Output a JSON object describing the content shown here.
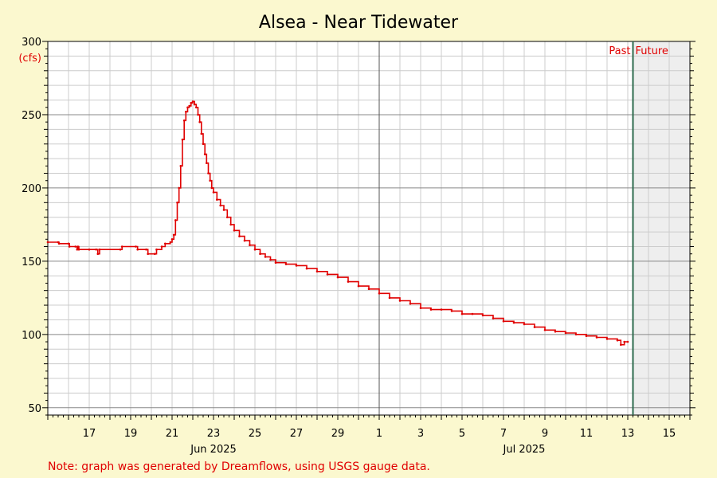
{
  "chart_data": {
    "type": "line",
    "title": "Alsea - Near Tidewater",
    "unit_label": "(cfs)",
    "xlabel": "",
    "ylabel": "",
    "x_range": [
      "2025-06-15",
      "2025-07-16"
    ],
    "ylim": [
      45,
      300
    ],
    "y_ticks": [
      50,
      100,
      150,
      200,
      250,
      300
    ],
    "x_ticks": [
      {
        "date": "2025-06-17",
        "label": "17"
      },
      {
        "date": "2025-06-19",
        "label": "19"
      },
      {
        "date": "2025-06-21",
        "label": "21"
      },
      {
        "date": "2025-06-23",
        "label": "23"
      },
      {
        "date": "2025-06-25",
        "label": "25"
      },
      {
        "date": "2025-06-27",
        "label": "27"
      },
      {
        "date": "2025-06-29",
        "label": "29"
      },
      {
        "date": "2025-07-01",
        "label": "1"
      },
      {
        "date": "2025-07-03",
        "label": "3"
      },
      {
        "date": "2025-07-05",
        "label": "5"
      },
      {
        "date": "2025-07-07",
        "label": "7"
      },
      {
        "date": "2025-07-09",
        "label": "9"
      },
      {
        "date": "2025-07-11",
        "label": "11"
      },
      {
        "date": "2025-07-13",
        "label": "13"
      },
      {
        "date": "2025-07-15",
        "label": "15"
      }
    ],
    "month_labels": [
      {
        "date": "2025-06-23",
        "label": "Jun 2025"
      },
      {
        "date": "2025-07-08",
        "label": "Jul 2025"
      }
    ],
    "month_divider": "2025-07-01",
    "now": "2025-07-13 06:00",
    "past_label": "Past",
    "future_label": "Future",
    "grid": true,
    "series": [
      {
        "color": "#e00000",
        "points": [
          [
            "2025-06-15 00:00",
            163
          ],
          [
            "2025-06-15 12:00",
            163
          ],
          [
            "2025-06-15 13:00",
            162
          ],
          [
            "2025-06-16 00:00",
            162
          ],
          [
            "2025-06-16 01:00",
            160
          ],
          [
            "2025-06-16 08:00",
            160
          ],
          [
            "2025-06-16 10:00",
            158
          ],
          [
            "2025-06-16 11:00",
            160
          ],
          [
            "2025-06-16 12:00",
            158
          ],
          [
            "2025-06-17 00:00",
            158
          ],
          [
            "2025-06-17 08:00",
            158
          ],
          [
            "2025-06-17 10:00",
            155
          ],
          [
            "2025-06-17 12:00",
            158
          ],
          [
            "2025-06-18 12:00",
            158
          ],
          [
            "2025-06-18 14:00",
            160
          ],
          [
            "2025-06-19 06:00",
            160
          ],
          [
            "2025-06-19 08:00",
            158
          ],
          [
            "2025-06-19 18:00",
            158
          ],
          [
            "2025-06-19 20:00",
            155
          ],
          [
            "2025-06-20 04:00",
            155
          ],
          [
            "2025-06-20 06:00",
            158
          ],
          [
            "2025-06-20 12:00",
            160
          ],
          [
            "2025-06-20 16:00",
            162
          ],
          [
            "2025-06-20 22:00",
            163
          ],
          [
            "2025-06-21 00:00",
            165
          ],
          [
            "2025-06-21 02:00",
            168
          ],
          [
            "2025-06-21 04:00",
            178
          ],
          [
            "2025-06-21 06:00",
            190
          ],
          [
            "2025-06-21 08:00",
            200
          ],
          [
            "2025-06-21 10:00",
            215
          ],
          [
            "2025-06-21 12:00",
            233
          ],
          [
            "2025-06-21 14:00",
            246
          ],
          [
            "2025-06-21 16:00",
            252
          ],
          [
            "2025-06-21 18:00",
            255
          ],
          [
            "2025-06-21 20:00",
            256
          ],
          [
            "2025-06-21 22:00",
            258
          ],
          [
            "2025-06-22 00:00",
            259
          ],
          [
            "2025-06-22 02:00",
            257
          ],
          [
            "2025-06-22 04:00",
            255
          ],
          [
            "2025-06-22 06:00",
            250
          ],
          [
            "2025-06-22 08:00",
            245
          ],
          [
            "2025-06-22 10:00",
            237
          ],
          [
            "2025-06-22 12:00",
            230
          ],
          [
            "2025-06-22 14:00",
            223
          ],
          [
            "2025-06-22 16:00",
            217
          ],
          [
            "2025-06-22 18:00",
            210
          ],
          [
            "2025-06-22 20:00",
            205
          ],
          [
            "2025-06-22 22:00",
            200
          ],
          [
            "2025-06-23 00:00",
            197
          ],
          [
            "2025-06-23 04:00",
            192
          ],
          [
            "2025-06-23 08:00",
            188
          ],
          [
            "2025-06-23 12:00",
            185
          ],
          [
            "2025-06-23 16:00",
            180
          ],
          [
            "2025-06-23 20:00",
            175
          ],
          [
            "2025-06-24 00:00",
            171
          ],
          [
            "2025-06-24 06:00",
            167
          ],
          [
            "2025-06-24 12:00",
            164
          ],
          [
            "2025-06-24 18:00",
            161
          ],
          [
            "2025-06-25 00:00",
            158
          ],
          [
            "2025-06-25 06:00",
            155
          ],
          [
            "2025-06-25 12:00",
            153
          ],
          [
            "2025-06-25 18:00",
            151
          ],
          [
            "2025-06-26 00:00",
            149
          ],
          [
            "2025-06-26 12:00",
            148
          ],
          [
            "2025-06-27 00:00",
            147
          ],
          [
            "2025-06-27 12:00",
            145
          ],
          [
            "2025-06-28 00:00",
            143
          ],
          [
            "2025-06-28 12:00",
            141
          ],
          [
            "2025-06-29 00:00",
            139
          ],
          [
            "2025-06-29 12:00",
            136
          ],
          [
            "2025-06-30 00:00",
            133
          ],
          [
            "2025-06-30 12:00",
            131
          ],
          [
            "2025-07-01 00:00",
            128
          ],
          [
            "2025-07-01 12:00",
            125
          ],
          [
            "2025-07-02 00:00",
            123
          ],
          [
            "2025-07-02 12:00",
            121
          ],
          [
            "2025-07-03 00:00",
            118
          ],
          [
            "2025-07-03 12:00",
            117
          ],
          [
            "2025-07-04 00:00",
            117
          ],
          [
            "2025-07-04 12:00",
            116
          ],
          [
            "2025-07-05 00:00",
            114
          ],
          [
            "2025-07-05 12:00",
            114
          ],
          [
            "2025-07-06 00:00",
            113
          ],
          [
            "2025-07-06 12:00",
            111
          ],
          [
            "2025-07-07 00:00",
            109
          ],
          [
            "2025-07-07 12:00",
            108
          ],
          [
            "2025-07-08 00:00",
            107
          ],
          [
            "2025-07-08 12:00",
            105
          ],
          [
            "2025-07-09 00:00",
            103
          ],
          [
            "2025-07-09 12:00",
            102
          ],
          [
            "2025-07-10 00:00",
            101
          ],
          [
            "2025-07-10 12:00",
            100
          ],
          [
            "2025-07-11 00:00",
            99
          ],
          [
            "2025-07-11 12:00",
            98
          ],
          [
            "2025-07-12 00:00",
            97
          ],
          [
            "2025-07-12 12:00",
            96
          ],
          [
            "2025-07-12 16:00",
            93
          ],
          [
            "2025-07-12 20:00",
            95
          ],
          [
            "2025-07-13 00:00",
            95
          ]
        ]
      }
    ]
  },
  "footer_note": "Note: graph was generated by Dreamflows, using USGS gauge data."
}
